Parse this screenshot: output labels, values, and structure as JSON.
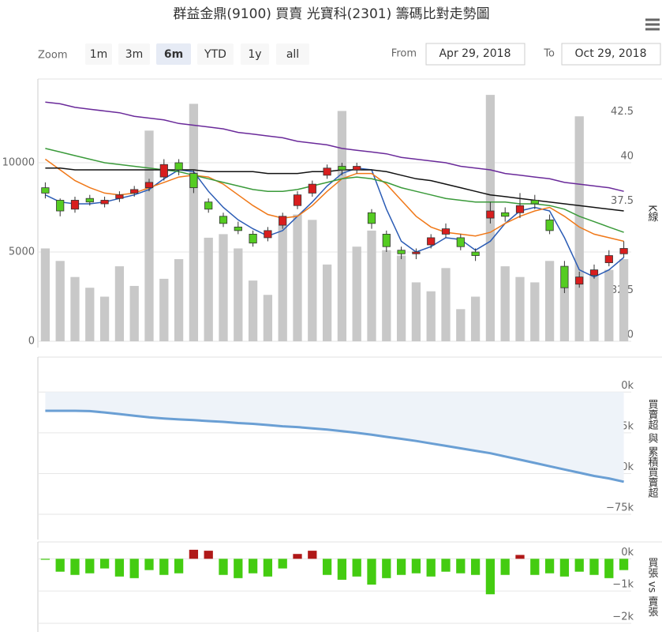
{
  "title": "群益金鼎(9100) 買賣 光寶科(2301) 籌碼比對走勢圖",
  "range_selector": {
    "zoom_label": "Zoom",
    "buttons": [
      "1m",
      "3m",
      "6m",
      "YTD",
      "1y",
      "all"
    ],
    "selected": 2,
    "from_label": "From",
    "from_value": "Apr 29, 2018",
    "to_label": "To",
    "to_value": "Oct 29, 2018"
  },
  "chart_data": [
    {
      "type": "candlestick",
      "ylabel": "K線",
      "ylim": [
        30,
        45
      ],
      "yticks": [
        30,
        32.5,
        37.5,
        40,
        42.5
      ],
      "y2lim": [
        0,
        15000
      ],
      "y2ticks": [
        0,
        5000,
        10000
      ],
      "grid": true,
      "up_color": "#d81e1e",
      "down_color": "#55cc22",
      "open": [
        38.6,
        37.9,
        37.4,
        38.0,
        37.7,
        38.0,
        38.3,
        38.6,
        39.2,
        40.0,
        39.4,
        37.8,
        37.0,
        36.4,
        36.0,
        35.8,
        36.5,
        37.6,
        38.3,
        39.3,
        39.8,
        39.6,
        37.2,
        36.0,
        35.1,
        34.9,
        35.4,
        36.0,
        35.8,
        35.0,
        36.9,
        37.2,
        37.2,
        37.9,
        36.8,
        34.2,
        33.2,
        33.7,
        34.4,
        34.9
      ],
      "high": [
        38.9,
        38.0,
        38.1,
        38.2,
        38.1,
        38.4,
        38.7,
        39.1,
        40.2,
        40.2,
        39.6,
        38.0,
        37.2,
        36.7,
        36.2,
        36.4,
        37.2,
        38.4,
        39.0,
        39.9,
        40.0,
        40.0,
        37.4,
        36.2,
        35.3,
        35.2,
        36.0,
        36.6,
        36.0,
        35.2,
        37.8,
        37.5,
        38.3,
        38.2,
        37.1,
        34.5,
        33.9,
        34.3,
        35.1,
        35.6
      ],
      "low": [
        38.0,
        37.0,
        37.2,
        37.6,
        37.5,
        37.8,
        38.1,
        38.4,
        39.0,
        39.3,
        38.3,
        37.2,
        36.4,
        36.0,
        35.3,
        35.6,
        36.3,
        37.4,
        38.1,
        39.1,
        39.3,
        39.4,
        36.3,
        35.0,
        34.6,
        34.6,
        35.2,
        35.8,
        35.1,
        34.5,
        36.6,
        36.7,
        36.9,
        37.4,
        36.0,
        32.7,
        33.0,
        33.5,
        34.2,
        34.7
      ],
      "close": [
        38.3,
        37.3,
        37.9,
        37.8,
        37.9,
        38.2,
        38.5,
        38.9,
        39.9,
        39.6,
        38.6,
        37.4,
        36.6,
        36.2,
        35.5,
        36.2,
        37.0,
        38.2,
        38.8,
        39.7,
        39.6,
        39.8,
        36.6,
        35.3,
        34.9,
        35.0,
        35.8,
        36.3,
        35.3,
        34.8,
        37.3,
        37.0,
        37.6,
        37.7,
        36.2,
        33.0,
        33.6,
        34.0,
        34.8,
        35.2
      ],
      "volume": {
        "axis": "y2",
        "color": "#c8c8c8",
        "values": [
          5200,
          4500,
          3600,
          3000,
          2500,
          4200,
          3100,
          11800,
          3500,
          4600,
          13300,
          5800,
          6000,
          5200,
          3400,
          2600,
          6500,
          7100,
          6800,
          4300,
          12900,
          5300,
          6200,
          5100,
          4800,
          3300,
          2800,
          4100,
          1800,
          2500,
          13800,
          4200,
          3600,
          3300,
          4500,
          3000,
          12600,
          3700,
          4000,
          4600
        ]
      },
      "series": [
        {
          "color": "#2b5cb5",
          "values": [
            38.2,
            37.8,
            37.7,
            37.7,
            37.8,
            38.0,
            38.2,
            38.5,
            39.1,
            39.6,
            39.5,
            38.4,
            37.5,
            36.8,
            36.3,
            35.9,
            36.2,
            37.0,
            37.8,
            38.7,
            39.4,
            39.7,
            39.6,
            37.4,
            35.6,
            35.0,
            35.3,
            35.8,
            35.7,
            35.1,
            35.6,
            36.6,
            37.3,
            37.5,
            37.3,
            35.8,
            34.0,
            33.6,
            34.0,
            34.7
          ]
        },
        {
          "color": "#f07818",
          "values": [
            40.2,
            39.6,
            39.0,
            38.6,
            38.3,
            38.2,
            38.3,
            38.6,
            38.9,
            39.2,
            39.3,
            39.2,
            38.8,
            38.2,
            37.6,
            37.1,
            36.9,
            37.0,
            37.6,
            38.4,
            39.1,
            39.4,
            39.4,
            38.8,
            37.9,
            37.0,
            36.4,
            36.1,
            36.0,
            35.9,
            36.1,
            36.6,
            37.0,
            37.3,
            37.5,
            37.0,
            36.4,
            36.0,
            35.8,
            35.6
          ]
        },
        {
          "color": "#3a9a3a",
          "values": [
            40.8,
            40.6,
            40.4,
            40.2,
            40.0,
            39.9,
            39.8,
            39.7,
            39.6,
            39.5,
            39.3,
            39.1,
            38.9,
            38.7,
            38.5,
            38.4,
            38.4,
            38.5,
            38.7,
            38.9,
            39.1,
            39.2,
            39.1,
            38.9,
            38.6,
            38.4,
            38.2,
            38.0,
            37.9,
            37.8,
            37.8,
            37.8,
            37.7,
            37.7,
            37.6,
            37.4,
            37.0,
            36.7,
            36.4,
            36.1
          ]
        },
        {
          "color": "#111111",
          "values": [
            39.7,
            39.7,
            39.6,
            39.6,
            39.6,
            39.6,
            39.6,
            39.6,
            39.6,
            39.6,
            39.6,
            39.5,
            39.5,
            39.5,
            39.5,
            39.4,
            39.4,
            39.4,
            39.5,
            39.5,
            39.6,
            39.6,
            39.6,
            39.5,
            39.3,
            39.1,
            39.0,
            38.8,
            38.6,
            38.4,
            38.2,
            38.1,
            38.0,
            37.9,
            37.8,
            37.7,
            37.6,
            37.5,
            37.4,
            37.3
          ]
        },
        {
          "color": "#6a2a9a",
          "values": [
            43.4,
            43.3,
            43.1,
            43.0,
            42.9,
            42.8,
            42.6,
            42.5,
            42.4,
            42.2,
            42.1,
            42.0,
            41.9,
            41.7,
            41.6,
            41.5,
            41.4,
            41.2,
            41.1,
            41.0,
            40.8,
            40.7,
            40.6,
            40.5,
            40.3,
            40.2,
            40.1,
            40.0,
            39.8,
            39.7,
            39.6,
            39.4,
            39.3,
            39.2,
            39.1,
            38.9,
            38.8,
            38.7,
            38.6,
            38.4
          ]
        }
      ]
    },
    {
      "type": "area",
      "ylabel": "買賣超 與 累積買賣超",
      "ylim": [
        -90000,
        20000
      ],
      "yticks": [
        {
          "value": 0,
          "label": "0k"
        },
        {
          "value": -25000,
          "label": "−25k"
        },
        {
          "value": -50000,
          "label": "−50k"
        },
        {
          "value": -75000,
          "label": "−75k"
        }
      ],
      "grid": true,
      "color": "#6a9fd4",
      "fill": "#eef3f9",
      "values": [
        -11500,
        -11500,
        -11500,
        -11700,
        -12500,
        -13500,
        -14500,
        -15500,
        -16200,
        -16800,
        -17200,
        -17800,
        -18300,
        -19000,
        -19500,
        -20200,
        -21000,
        -21500,
        -22300,
        -23000,
        -24000,
        -25000,
        -26200,
        -27500,
        -28700,
        -30000,
        -31500,
        -33000,
        -34500,
        -36000,
        -37500,
        -39500,
        -41500,
        -43500,
        -45500,
        -47500,
        -49500,
        -51500,
        -53000,
        -55000
      ]
    },
    {
      "type": "bar",
      "ylabel": "買張 vs 賣張",
      "ylim": [
        -2000,
        400
      ],
      "yticks": [
        {
          "value": 0,
          "label": "0k"
        },
        {
          "value": -1000,
          "label": "−1k"
        },
        {
          "value": -2000,
          "label": "−2k"
        }
      ],
      "grid": true,
      "color": "#b01818",
      "negative_color": "#44cc11",
      "values": [
        -30,
        -400,
        -500,
        -450,
        -300,
        -550,
        -600,
        -350,
        -500,
        -450,
        280,
        250,
        -500,
        -600,
        -450,
        -550,
        -300,
        150,
        250,
        -500,
        -650,
        -550,
        -800,
        -600,
        -500,
        -450,
        -550,
        -400,
        -450,
        -500,
        -1100,
        -500,
        120,
        -500,
        -450,
        -550,
        -400,
        -500,
        -600,
        -350
      ]
    }
  ]
}
